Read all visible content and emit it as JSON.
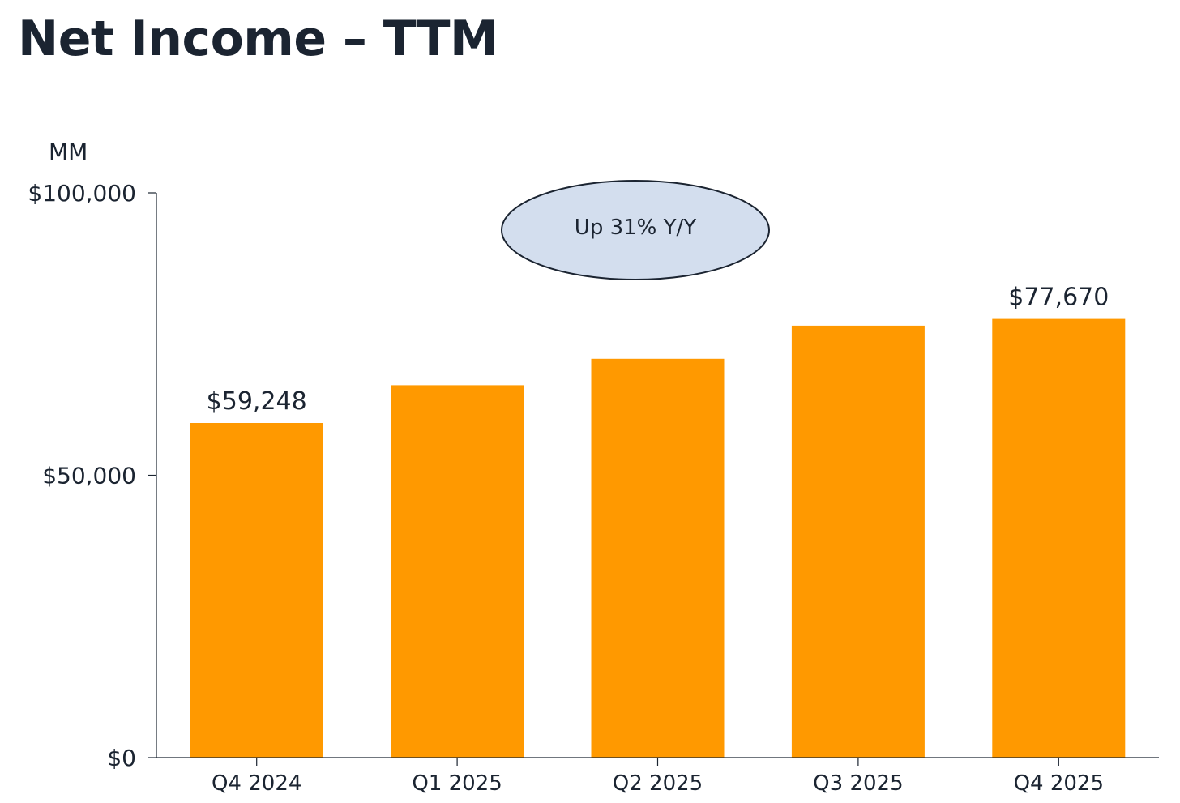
{
  "chart_data": {
    "type": "bar",
    "title": "Net Income – TTM",
    "unit_label": "MM",
    "categories": [
      "Q4 2024",
      "Q1 2025",
      "Q2 2025",
      "Q3 2025",
      "Q4 2025"
    ],
    "values": [
      59248,
      65944,
      70623,
      76483,
      77670
    ],
    "data_labels": [
      "$59,248",
      "",
      "",
      "",
      "$77,670"
    ],
    "ylim": [
      0,
      100000
    ],
    "yticks": [
      {
        "value": 0,
        "label": "$0"
      },
      {
        "value": 50000,
        "label": "$50,000"
      },
      {
        "value": 100000,
        "label": "$100,000"
      }
    ],
    "annotation": "Up 31% Y/Y",
    "grid": false,
    "colors": {
      "bar": "#FF9900",
      "axis": "#1b2431",
      "callout_fill": "#D3DEEE",
      "callout_stroke": "#1b2431"
    }
  }
}
